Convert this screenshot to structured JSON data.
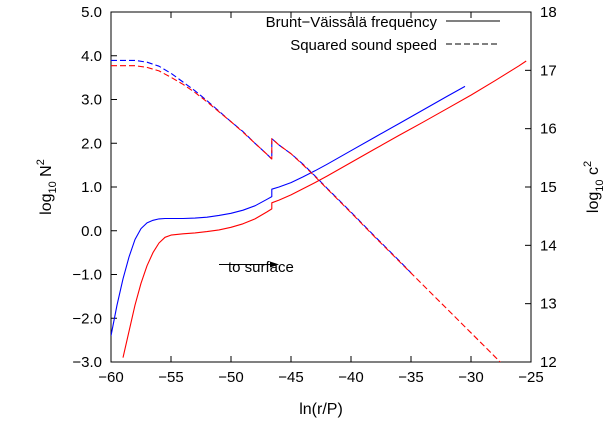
{
  "chart_data": {
    "type": "line",
    "title": "",
    "xlabel": "ln(r/P)",
    "ylabel_left": {
      "base": "log",
      "sub": "10",
      "main": " N",
      "sup": "2"
    },
    "ylabel_right": {
      "base": "log",
      "sub": "10",
      "main": " c",
      "sup": "2"
    },
    "xlim": [
      -60,
      -25
    ],
    "ylim_left": [
      -3,
      5
    ],
    "ylim_right": [
      12,
      18
    ],
    "x_ticks": [
      -60,
      -55,
      -50,
      -45,
      -40,
      -35,
      -30,
      -25
    ],
    "x_tick_labels": [
      "−60",
      "−55",
      "−50",
      "−45",
      "−40",
      "−35",
      "−30",
      "−25"
    ],
    "y_left_ticks": [
      -3,
      -2,
      -1,
      0,
      1,
      2,
      3,
      4,
      5
    ],
    "y_left_tick_labels": [
      "−3.0",
      "−2.0",
      "−1.0",
      "0.0",
      "1.0",
      "2.0",
      "3.0",
      "4.0",
      "5.0"
    ],
    "y_right_ticks": [
      12,
      13,
      14,
      15,
      16,
      17,
      18
    ],
    "y_right_tick_labels": [
      "12",
      "13",
      "14",
      "15",
      "16",
      "17",
      "18"
    ],
    "grid": false,
    "legend_position": "top-right",
    "legend": [
      {
        "label": "Brunt−Väissälä frequency",
        "style": "solid"
      },
      {
        "label": "Squared sound speed",
        "style": "dashed"
      }
    ],
    "annotation": {
      "text": "to surface",
      "arrow_from": [
        -51,
        -0.77
      ],
      "arrow_to": [
        -46,
        -0.77
      ]
    },
    "colors": {
      "blue": "#0000ff",
      "red": "#ff0000",
      "axes": "#000000"
    },
    "series": [
      {
        "color": "blue",
        "style": "solid",
        "axis": "left",
        "points": [
          [
            -60,
            -2.4
          ],
          [
            -59.5,
            -1.7
          ],
          [
            -59,
            -1.1
          ],
          [
            -58.5,
            -0.6
          ],
          [
            -58,
            -0.2
          ],
          [
            -57.5,
            0.05
          ],
          [
            -57,
            0.18
          ],
          [
            -56.5,
            0.24
          ],
          [
            -56,
            0.27
          ],
          [
            -55.5,
            0.28
          ],
          [
            -55,
            0.28
          ],
          [
            -54,
            0.28
          ],
          [
            -53,
            0.29
          ],
          [
            -52,
            0.31
          ],
          [
            -51,
            0.35
          ],
          [
            -50,
            0.4
          ],
          [
            -49,
            0.47
          ],
          [
            -48,
            0.57
          ],
          [
            -47,
            0.72
          ],
          [
            -46.6,
            0.78
          ],
          [
            -46.6,
            0.95
          ],
          [
            -46,
            1.0
          ],
          [
            -45,
            1.1
          ],
          [
            -44,
            1.23
          ],
          [
            -43,
            1.37
          ],
          [
            -42,
            1.52
          ],
          [
            -40,
            1.83
          ],
          [
            -38,
            2.14
          ],
          [
            -36,
            2.45
          ],
          [
            -34,
            2.76
          ],
          [
            -32,
            3.07
          ],
          [
            -30.5,
            3.3
          ]
        ]
      },
      {
        "color": "red",
        "style": "solid",
        "axis": "left",
        "points": [
          [
            -59,
            -2.9
          ],
          [
            -58.5,
            -2.3
          ],
          [
            -58,
            -1.7
          ],
          [
            -57.5,
            -1.2
          ],
          [
            -57,
            -0.8
          ],
          [
            -56.5,
            -0.5
          ],
          [
            -56,
            -0.28
          ],
          [
            -55.5,
            -0.15
          ],
          [
            -55,
            -0.1
          ],
          [
            -54,
            -0.07
          ],
          [
            -53,
            -0.05
          ],
          [
            -52,
            -0.02
          ],
          [
            -51,
            0.02
          ],
          [
            -50,
            0.08
          ],
          [
            -49,
            0.16
          ],
          [
            -48,
            0.27
          ],
          [
            -47,
            0.43
          ],
          [
            -46.6,
            0.5
          ],
          [
            -46.6,
            0.64
          ],
          [
            -46,
            0.7
          ],
          [
            -45,
            0.82
          ],
          [
            -44,
            0.96
          ],
          [
            -43,
            1.1
          ],
          [
            -42,
            1.25
          ],
          [
            -40,
            1.56
          ],
          [
            -38,
            1.87
          ],
          [
            -36,
            2.18
          ],
          [
            -34,
            2.48
          ],
          [
            -32,
            2.79
          ],
          [
            -30,
            3.1
          ],
          [
            -28,
            3.43
          ],
          [
            -26,
            3.77
          ],
          [
            -25.4,
            3.88
          ]
        ]
      },
      {
        "color": "blue",
        "style": "dashed",
        "axis": "right",
        "points": [
          [
            -60,
            17.17
          ],
          [
            -58,
            17.17
          ],
          [
            -57,
            17.14
          ],
          [
            -56,
            17.07
          ],
          [
            -55,
            16.95
          ],
          [
            -54,
            16.8
          ],
          [
            -53,
            16.65
          ],
          [
            -52,
            16.48
          ],
          [
            -51,
            16.3
          ],
          [
            -50,
            16.12
          ],
          [
            -49,
            15.95
          ],
          [
            -48,
            15.75
          ],
          [
            -47,
            15.56
          ],
          [
            -46.6,
            15.48
          ],
          [
            -46.6,
            15.83
          ],
          [
            -46,
            15.72
          ],
          [
            -45,
            15.57
          ],
          [
            -44,
            15.39
          ],
          [
            -43,
            15.19
          ],
          [
            -42,
            14.98
          ],
          [
            -40,
            14.57
          ],
          [
            -38,
            14.15
          ],
          [
            -36,
            13.74
          ],
          [
            -35,
            13.53
          ]
        ]
      },
      {
        "color": "red",
        "style": "dashed",
        "axis": "right",
        "points": [
          [
            -60,
            17.08
          ],
          [
            -58,
            17.08
          ],
          [
            -57,
            17.05
          ],
          [
            -56,
            16.99
          ],
          [
            -55,
            16.88
          ],
          [
            -54,
            16.76
          ],
          [
            -53,
            16.62
          ],
          [
            -52,
            16.46
          ],
          [
            -51,
            16.29
          ],
          [
            -50,
            16.12
          ],
          [
            -49,
            15.94
          ],
          [
            -48,
            15.75
          ],
          [
            -47,
            15.56
          ],
          [
            -46.6,
            15.48
          ],
          [
            -46.6,
            15.83
          ],
          [
            -46,
            15.72
          ],
          [
            -45,
            15.57
          ],
          [
            -44,
            15.38
          ],
          [
            -43,
            15.18
          ],
          [
            -42,
            14.97
          ],
          [
            -40,
            14.56
          ],
          [
            -38,
            14.14
          ],
          [
            -36,
            13.73
          ],
          [
            -34,
            13.32
          ],
          [
            -32,
            12.91
          ],
          [
            -30,
            12.5
          ],
          [
            -28,
            12.09
          ],
          [
            -26,
            11.68
          ],
          [
            -25.4,
            11.56
          ]
        ]
      }
    ]
  }
}
